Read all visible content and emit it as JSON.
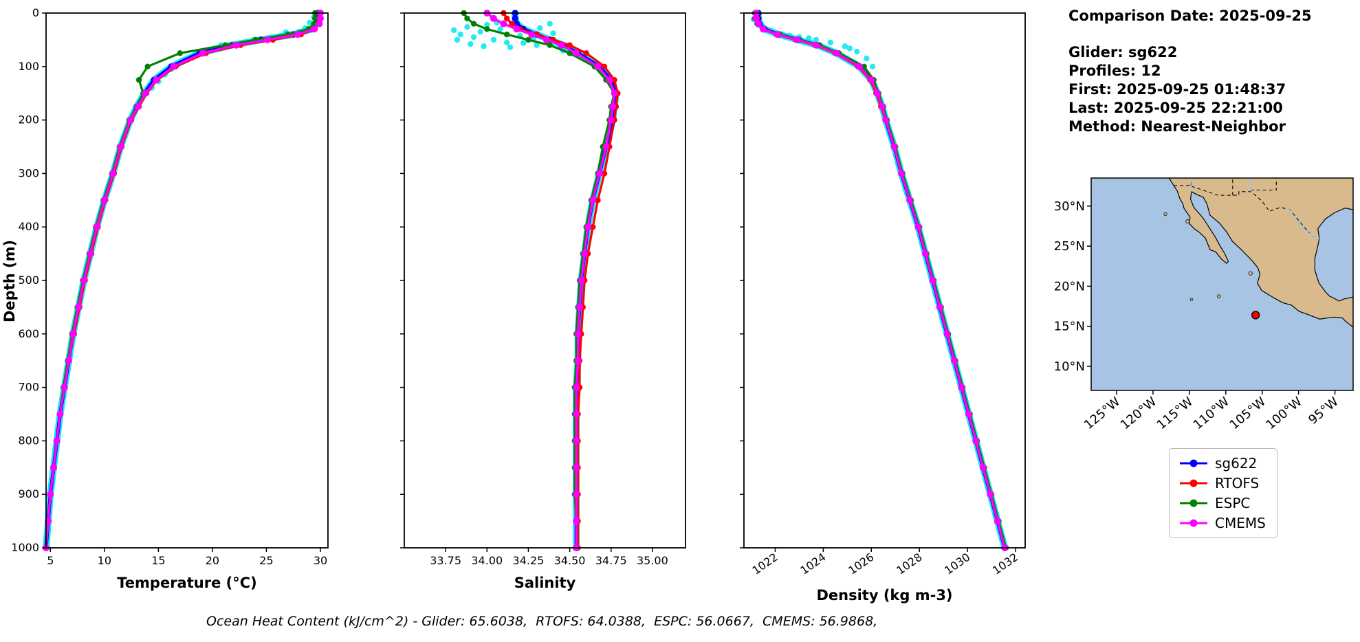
{
  "info": {
    "comparison_date": "Comparison Date: 2025-09-25",
    "glider": "Glider: sg622",
    "profiles": "Profiles: 12",
    "first": "First: 2025-09-25 01:48:37",
    "last": "Last: 2025-09-25 22:21:00",
    "method": "Method: Nearest-Neighbor"
  },
  "footer": {
    "text": "Ocean Heat Content (kJ/cm^2) - Glider: 65.6038,  RTOFS: 64.0388,  ESPC: 56.0667,  CMEMS: 56.9868,"
  },
  "legend": {
    "items": [
      {
        "label": "sg622",
        "color": "#0000ff"
      },
      {
        "label": "RTOFS",
        "color": "#ff0000"
      },
      {
        "label": "ESPC",
        "color": "#008000"
      },
      {
        "label": "CMEMS",
        "color": "#ff00ff"
      }
    ]
  },
  "chart_data": [
    {
      "name": "temperature",
      "type": "line",
      "xlabel": "Temperature (°C)",
      "ylabel": "Depth (m)",
      "xlim": [
        4.6,
        30.7
      ],
      "ylim": [
        0,
        1000
      ],
      "xticks": [
        5,
        10,
        15,
        20,
        25,
        30
      ],
      "xtick_labels": [
        "5",
        "10",
        "15",
        "20",
        "25",
        "30"
      ],
      "yticks": [
        0,
        100,
        200,
        300,
        400,
        500,
        600,
        700,
        800,
        900,
        1000
      ],
      "show_ytick_labels": true,
      "rotate_xtick_labels": false,
      "depths": [
        0,
        10,
        20,
        30,
        40,
        50,
        60,
        75,
        100,
        125,
        150,
        175,
        200,
        250,
        300,
        350,
        400,
        450,
        500,
        550,
        600,
        650,
        700,
        750,
        800,
        850,
        900,
        950,
        1000
      ],
      "series": [
        {
          "name": "sg622",
          "color": "#0000ff",
          "values": [
            29.8,
            29.8,
            29.7,
            29.2,
            27.5,
            24.5,
            21.8,
            18.8,
            16.2,
            14.6,
            13.7,
            13.0,
            12.4,
            11.5,
            10.8,
            10.0,
            9.3,
            8.7,
            8.1,
            7.6,
            7.1,
            6.7,
            6.3,
            5.9,
            5.6,
            5.3,
            5.0,
            4.8,
            4.6
          ]
        },
        {
          "name": "RTOFS",
          "color": "#ff0000",
          "values": [
            29.9,
            29.9,
            29.8,
            29.5,
            28.2,
            25.6,
            22.6,
            19.4,
            16.6,
            14.9,
            13.9,
            13.2,
            12.5,
            11.6,
            10.9,
            10.1,
            9.4,
            8.8,
            8.2,
            7.7,
            7.2,
            6.7,
            6.3,
            5.9,
            5.6,
            5.3,
            5.0,
            4.8,
            4.6
          ]
        },
        {
          "name": "ESPC",
          "color": "#008000",
          "values": [
            29.5,
            29.5,
            29.4,
            28.9,
            27.0,
            24.0,
            21.2,
            17.0,
            14.0,
            13.2,
            13.6,
            13.0,
            12.3,
            11.4,
            10.7,
            9.9,
            9.2,
            8.6,
            8.0,
            7.5,
            7.0,
            6.6,
            6.2,
            5.9,
            5.6,
            5.3,
            5.0,
            4.8,
            4.6
          ]
        },
        {
          "name": "CMEMS",
          "color": "#ff00ff",
          "values": [
            30.0,
            30.0,
            29.9,
            29.4,
            27.9,
            25.1,
            22.2,
            19.1,
            16.4,
            14.8,
            13.8,
            13.1,
            12.4,
            11.5,
            10.8,
            10.0,
            9.3,
            8.7,
            8.1,
            7.6,
            7.1,
            6.7,
            6.3,
            5.9,
            5.6,
            5.3,
            5.0,
            4.8,
            4.6
          ]
        }
      ],
      "scatter": {
        "name": "glider-raw-profiles",
        "color": "#00e5ee",
        "points": [
          [
            29.4,
            8
          ],
          [
            29.0,
            18
          ],
          [
            28.6,
            28
          ],
          [
            28.0,
            35
          ],
          [
            27.2,
            40
          ],
          [
            26.3,
            44
          ],
          [
            25.2,
            48
          ],
          [
            24.2,
            52
          ],
          [
            23.2,
            55
          ],
          [
            22.2,
            58
          ],
          [
            21.2,
            62
          ],
          [
            20.2,
            66
          ],
          [
            19.2,
            72
          ],
          [
            18.2,
            80
          ],
          [
            17.4,
            88
          ],
          [
            16.8,
            96
          ],
          [
            16.2,
            105
          ],
          [
            15.6,
            115
          ],
          [
            15.0,
            128
          ],
          [
            14.4,
            140
          ],
          [
            26.8,
            36
          ],
          [
            23.8,
            50
          ],
          [
            20.8,
            60
          ],
          [
            18.8,
            76
          ],
          [
            17.0,
            92
          ],
          [
            29.6,
            5
          ],
          [
            25.8,
            46
          ],
          [
            22.8,
            56
          ],
          [
            19.8,
            68
          ],
          [
            21.8,
            59
          ]
        ]
      }
    },
    {
      "name": "salinity",
      "type": "line",
      "xlabel": "Salinity",
      "ylabel": "",
      "xlim": [
        33.5,
        35.2
      ],
      "ylim": [
        0,
        1000
      ],
      "xticks": [
        33.75,
        34.0,
        34.25,
        34.5,
        34.75,
        35.0
      ],
      "xtick_labels": [
        "33.75",
        "34.00",
        "34.25",
        "34.50",
        "34.75",
        "35.00"
      ],
      "yticks": [
        0,
        100,
        200,
        300,
        400,
        500,
        600,
        700,
        800,
        900,
        1000
      ],
      "show_ytick_labels": false,
      "rotate_xtick_labels": false,
      "depths": [
        0,
        10,
        20,
        30,
        40,
        50,
        60,
        75,
        100,
        125,
        150,
        175,
        200,
        250,
        300,
        350,
        400,
        450,
        500,
        550,
        600,
        650,
        700,
        750,
        800,
        850,
        900,
        950,
        1000
      ],
      "series": [
        {
          "name": "sg622",
          "color": "#0000ff",
          "values": [
            34.17,
            34.17,
            34.18,
            34.22,
            34.3,
            34.38,
            34.46,
            34.55,
            34.68,
            34.75,
            34.78,
            34.77,
            34.76,
            34.72,
            34.68,
            34.64,
            34.61,
            34.59,
            34.57,
            34.56,
            34.55,
            34.55,
            34.54,
            34.54,
            34.54,
            34.54,
            34.54,
            34.54,
            34.54
          ]
        },
        {
          "name": "RTOFS",
          "color": "#ff0000",
          "values": [
            34.1,
            34.12,
            34.15,
            34.2,
            34.3,
            34.4,
            34.5,
            34.6,
            34.71,
            34.77,
            34.79,
            34.78,
            34.77,
            34.74,
            34.71,
            34.67,
            34.64,
            34.61,
            34.59,
            34.58,
            34.57,
            34.56,
            34.56,
            34.55,
            34.55,
            34.55,
            34.55,
            34.55,
            34.55
          ]
        },
        {
          "name": "ESPC",
          "color": "#008000",
          "values": [
            33.86,
            33.88,
            33.92,
            34.0,
            34.12,
            34.25,
            34.38,
            34.5,
            34.65,
            34.72,
            34.77,
            34.75,
            34.74,
            34.7,
            34.67,
            34.63,
            34.6,
            34.58,
            34.56,
            34.55,
            34.54,
            34.54,
            34.53,
            34.53,
            34.53,
            34.53,
            34.53,
            34.54,
            34.54
          ]
        },
        {
          "name": "CMEMS",
          "color": "#ff00ff",
          "values": [
            34.0,
            34.04,
            34.1,
            34.18,
            34.27,
            34.36,
            34.45,
            34.54,
            34.67,
            34.74,
            34.77,
            34.76,
            34.75,
            34.72,
            34.68,
            34.64,
            34.61,
            34.59,
            34.57,
            34.56,
            34.55,
            34.55,
            34.54,
            34.54,
            34.54,
            34.54,
            34.54,
            34.54,
            34.54
          ]
        }
      ],
      "scatter": {
        "name": "glider-raw-profiles",
        "color": "#00e5ee",
        "points": [
          [
            33.8,
            32
          ],
          [
            33.84,
            40
          ],
          [
            33.88,
            26
          ],
          [
            33.92,
            45
          ],
          [
            33.96,
            35
          ],
          [
            34.0,
            22
          ],
          [
            34.04,
            50
          ],
          [
            34.08,
            30
          ],
          [
            34.12,
            55
          ],
          [
            34.16,
            25
          ],
          [
            34.2,
            42
          ],
          [
            34.24,
            33
          ],
          [
            34.28,
            48
          ],
          [
            34.32,
            28
          ],
          [
            34.36,
            52
          ],
          [
            34.4,
            38
          ],
          [
            34.44,
            60
          ],
          [
            34.48,
            66
          ],
          [
            33.82,
            50
          ],
          [
            33.9,
            58
          ],
          [
            33.98,
            62
          ],
          [
            34.06,
            18
          ],
          [
            34.14,
            64
          ],
          [
            34.22,
            56
          ],
          [
            34.3,
            60
          ],
          [
            34.38,
            20
          ],
          [
            34.46,
            70
          ],
          [
            34.52,
            76
          ]
        ]
      }
    },
    {
      "name": "density",
      "type": "line",
      "xlabel": "Density (kg m-3)",
      "ylabel": "",
      "xlim": [
        1020.7,
        1032.4
      ],
      "ylim": [
        0,
        1000
      ],
      "xticks": [
        1022,
        1024,
        1026,
        1028,
        1030,
        1032
      ],
      "xtick_labels": [
        "1022",
        "1024",
        "1026",
        "1028",
        "1030",
        "1032"
      ],
      "yticks": [
        0,
        100,
        200,
        300,
        400,
        500,
        600,
        700,
        800,
        900,
        1000
      ],
      "show_ytick_labels": false,
      "rotate_xtick_labels": true,
      "depths": [
        0,
        10,
        20,
        30,
        40,
        50,
        60,
        75,
        100,
        125,
        150,
        175,
        200,
        250,
        300,
        350,
        400,
        450,
        500,
        550,
        600,
        650,
        700,
        750,
        800,
        850,
        900,
        950,
        1000
      ],
      "series": [
        {
          "name": "sg622",
          "color": "#0000ff",
          "values": [
            1021.3,
            1021.3,
            1021.35,
            1021.55,
            1022.15,
            1022.95,
            1023.75,
            1024.55,
            1025.5,
            1026.0,
            1026.25,
            1026.45,
            1026.6,
            1026.95,
            1027.25,
            1027.6,
            1027.95,
            1028.25,
            1028.55,
            1028.85,
            1029.15,
            1029.45,
            1029.75,
            1030.05,
            1030.35,
            1030.65,
            1030.95,
            1031.25,
            1031.55
          ]
        },
        {
          "name": "RTOFS",
          "color": "#ff0000",
          "values": [
            1021.25,
            1021.25,
            1021.3,
            1021.5,
            1022.05,
            1022.85,
            1023.65,
            1024.5,
            1025.45,
            1025.95,
            1026.2,
            1026.4,
            1026.6,
            1026.95,
            1027.25,
            1027.6,
            1027.95,
            1028.25,
            1028.55,
            1028.85,
            1029.15,
            1029.45,
            1029.75,
            1030.05,
            1030.35,
            1030.65,
            1030.95,
            1031.25,
            1031.55
          ]
        },
        {
          "name": "ESPC",
          "color": "#008000",
          "values": [
            1021.15,
            1021.15,
            1021.25,
            1021.5,
            1022.2,
            1023.0,
            1023.85,
            1024.65,
            1025.7,
            1026.1,
            1026.3,
            1026.5,
            1026.65,
            1027.0,
            1027.3,
            1027.65,
            1028.0,
            1028.3,
            1028.6,
            1028.9,
            1029.2,
            1029.5,
            1029.8,
            1030.1,
            1030.4,
            1030.7,
            1031.0,
            1031.3,
            1031.6
          ]
        },
        {
          "name": "CMEMS",
          "color": "#ff00ff",
          "values": [
            1021.2,
            1021.2,
            1021.3,
            1021.5,
            1022.1,
            1022.9,
            1023.7,
            1024.55,
            1025.5,
            1026.0,
            1026.25,
            1026.45,
            1026.6,
            1026.95,
            1027.25,
            1027.6,
            1027.95,
            1028.25,
            1028.55,
            1028.85,
            1029.15,
            1029.45,
            1029.75,
            1030.05,
            1030.35,
            1030.65,
            1030.95,
            1031.25,
            1031.55
          ]
        }
      ],
      "scatter": {
        "name": "glider-raw-profiles",
        "color": "#00e5ee",
        "points": [
          [
            1021.1,
            12
          ],
          [
            1021.3,
            22
          ],
          [
            1021.7,
            32
          ],
          [
            1022.3,
            40
          ],
          [
            1023.0,
            45
          ],
          [
            1023.7,
            50
          ],
          [
            1024.3,
            55
          ],
          [
            1024.9,
            62
          ],
          [
            1025.4,
            72
          ],
          [
            1025.8,
            85
          ],
          [
            1026.05,
            100
          ],
          [
            1022.6,
            42
          ],
          [
            1023.4,
            47
          ],
          [
            1025.1,
            66
          ],
          [
            1021.5,
            27
          ]
        ]
      }
    }
  ],
  "map": {
    "ocean_color": "#a8c4e4",
    "land_color": "#d9ba8c",
    "extent": {
      "lon_min": -128.5,
      "lon_max": -92.5,
      "lat_min": 7.0,
      "lat_max": 33.5
    },
    "lat_ticks": [
      {
        "v": 10,
        "label": "10°N"
      },
      {
        "v": 15,
        "label": "15°N"
      },
      {
        "v": 20,
        "label": "20°N"
      },
      {
        "v": 25,
        "label": "25°N"
      },
      {
        "v": 30,
        "label": "30°N"
      }
    ],
    "lon_ticks": [
      {
        "v": -125,
        "label": "125°W"
      },
      {
        "v": -120,
        "label": "120°W"
      },
      {
        "v": -115,
        "label": "115°W"
      },
      {
        "v": -110,
        "label": "110°W"
      },
      {
        "v": -105,
        "label": "105°W"
      },
      {
        "v": -100,
        "label": "100°W"
      },
      {
        "v": -95,
        "label": "95°W"
      }
    ],
    "marker": {
      "lon": -105.9,
      "lat": 16.4,
      "color": "#ff0000"
    }
  }
}
